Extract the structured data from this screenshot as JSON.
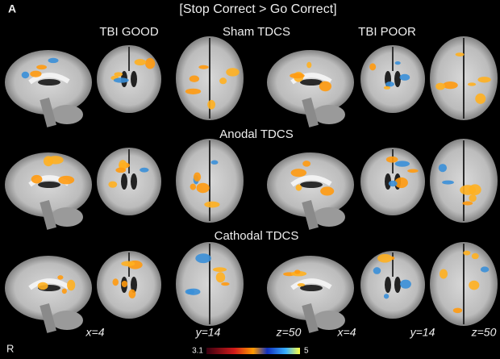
{
  "panel_label": "A",
  "title": "[Stop Correct > Go Correct]",
  "group_labels": [
    "TBI GOOD",
    "TBI POOR"
  ],
  "row_labels": [
    "Sham TDCS",
    "Anodal TDCS",
    "Cathodal TDCS"
  ],
  "slice_labels": [
    "x=4",
    "y=14",
    "z=50"
  ],
  "orientation_label": "R",
  "colorbar": {
    "min": 3.1,
    "max": 5
  }
}
